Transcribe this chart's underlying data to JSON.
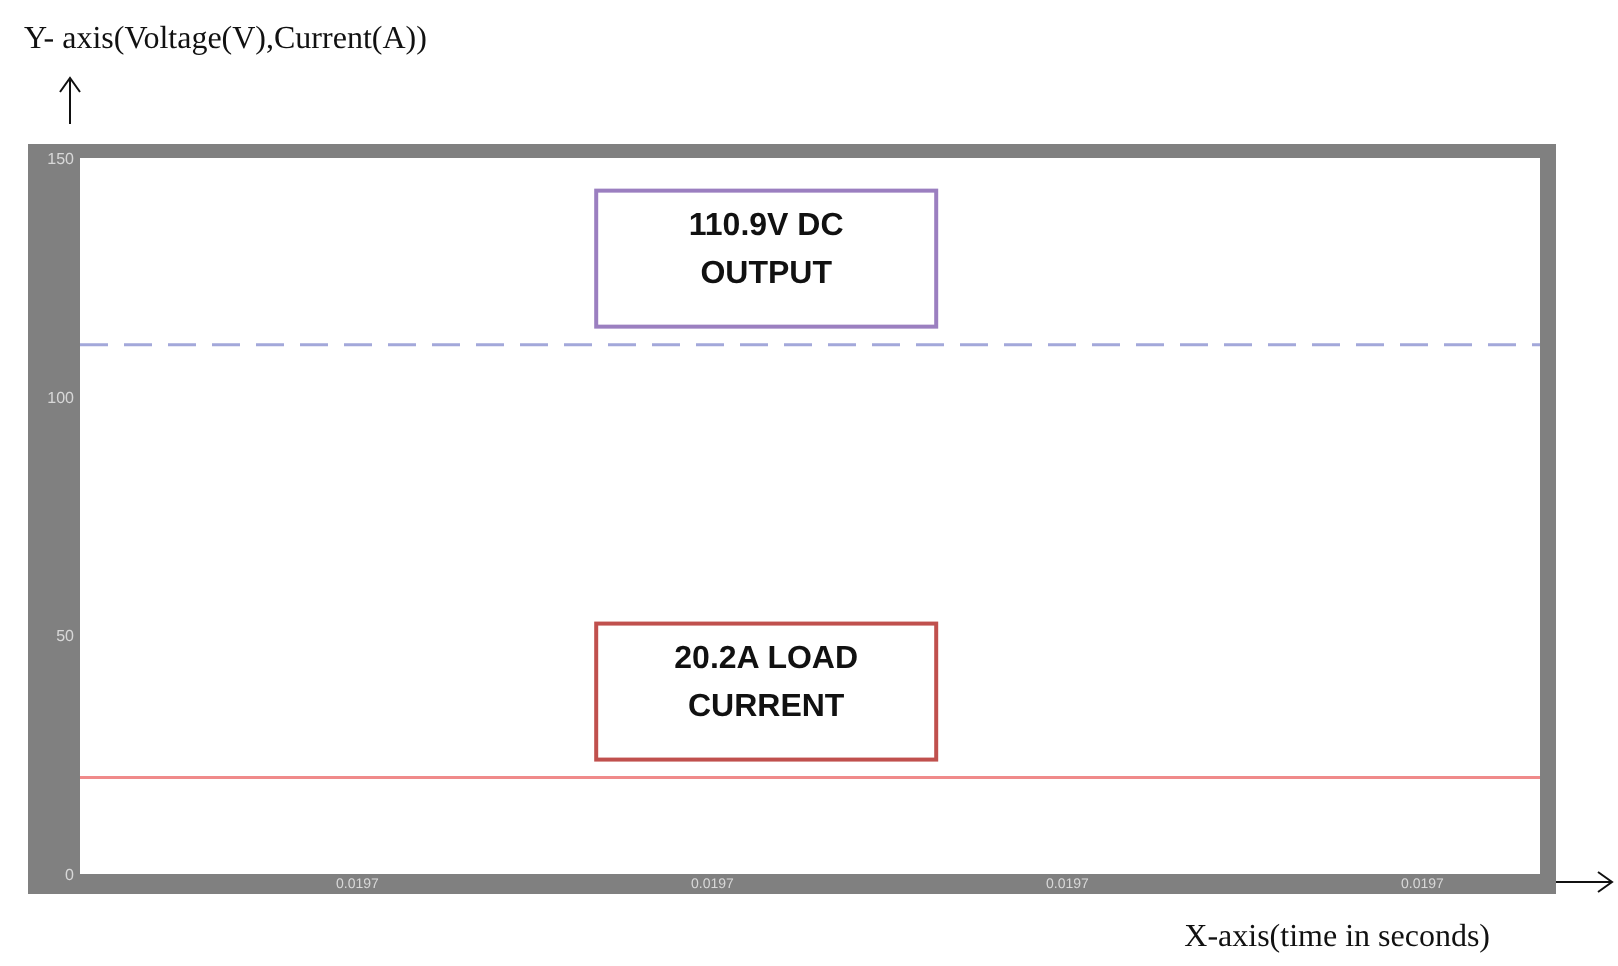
{
  "chart_data": {
    "type": "line",
    "xlabel": "X-axis(time in seconds)",
    "ylabel": "Y- axis(Voltage(V),Current(A))",
    "categories": [
      "0.0197",
      "0.0197",
      "0.0197",
      "0.0197"
    ],
    "ylim": [
      0,
      150
    ],
    "yticks": [
      0,
      50,
      100,
      150
    ],
    "grid": false,
    "ref_lines": [
      {
        "axis": "y",
        "value": 110.9,
        "label": "110.9V DC OUTPUT",
        "color": "#a3a8da",
        "line_style": "dashed"
      },
      {
        "axis": "y",
        "value": 20.2,
        "label": "20.2A LOAD CURRENT",
        "color": "#f08a8a",
        "line_style": "solid"
      }
    ]
  }
}
